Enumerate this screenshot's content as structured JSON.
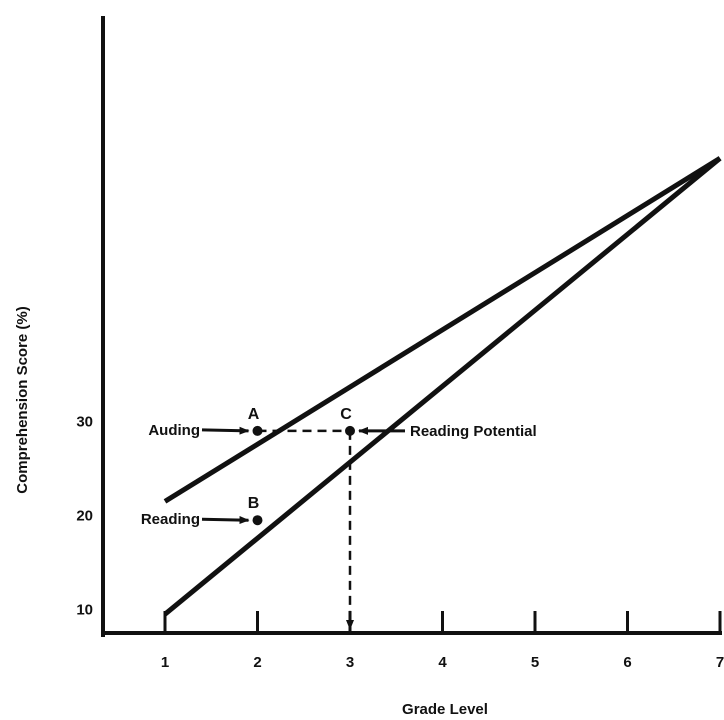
{
  "chart_data": {
    "type": "line",
    "xlabel": "Grade Level",
    "ylabel": "Comprehension Score (%)",
    "x_ticks": [
      "1",
      "2",
      "3",
      "4",
      "5",
      "6",
      "7"
    ],
    "y_ticks": [
      "10",
      "20",
      "30"
    ],
    "xlim": [
      0.4,
      7
    ],
    "ylim": [
      7.5,
      57
    ],
    "grid": false,
    "series": [
      {
        "name": "Auding",
        "points": [
          [
            1,
            21.5
          ],
          [
            7,
            58
          ]
        ]
      },
      {
        "name": "Reading",
        "points": [
          [
            1,
            9.5
          ],
          [
            7,
            58
          ]
        ]
      }
    ],
    "markers": [
      {
        "label": "A",
        "x": 2,
        "y": 29
      },
      {
        "label": "B",
        "x": 2,
        "y": 19.5
      },
      {
        "label": "C",
        "x": 3,
        "y": 29
      }
    ],
    "annotations": [
      {
        "text": "Auding",
        "points_to": "A"
      },
      {
        "text": "Reading",
        "points_to": "B"
      },
      {
        "text": "Reading Potential",
        "points_to": "C"
      }
    ],
    "reference_lines": [
      {
        "from": [
          2,
          29
        ],
        "to": [
          3,
          29
        ],
        "style": "dashed",
        "arrow": false
      },
      {
        "from": [
          3,
          29
        ],
        "to": [
          3,
          7.5
        ],
        "style": "dashed",
        "arrow": true
      }
    ]
  }
}
